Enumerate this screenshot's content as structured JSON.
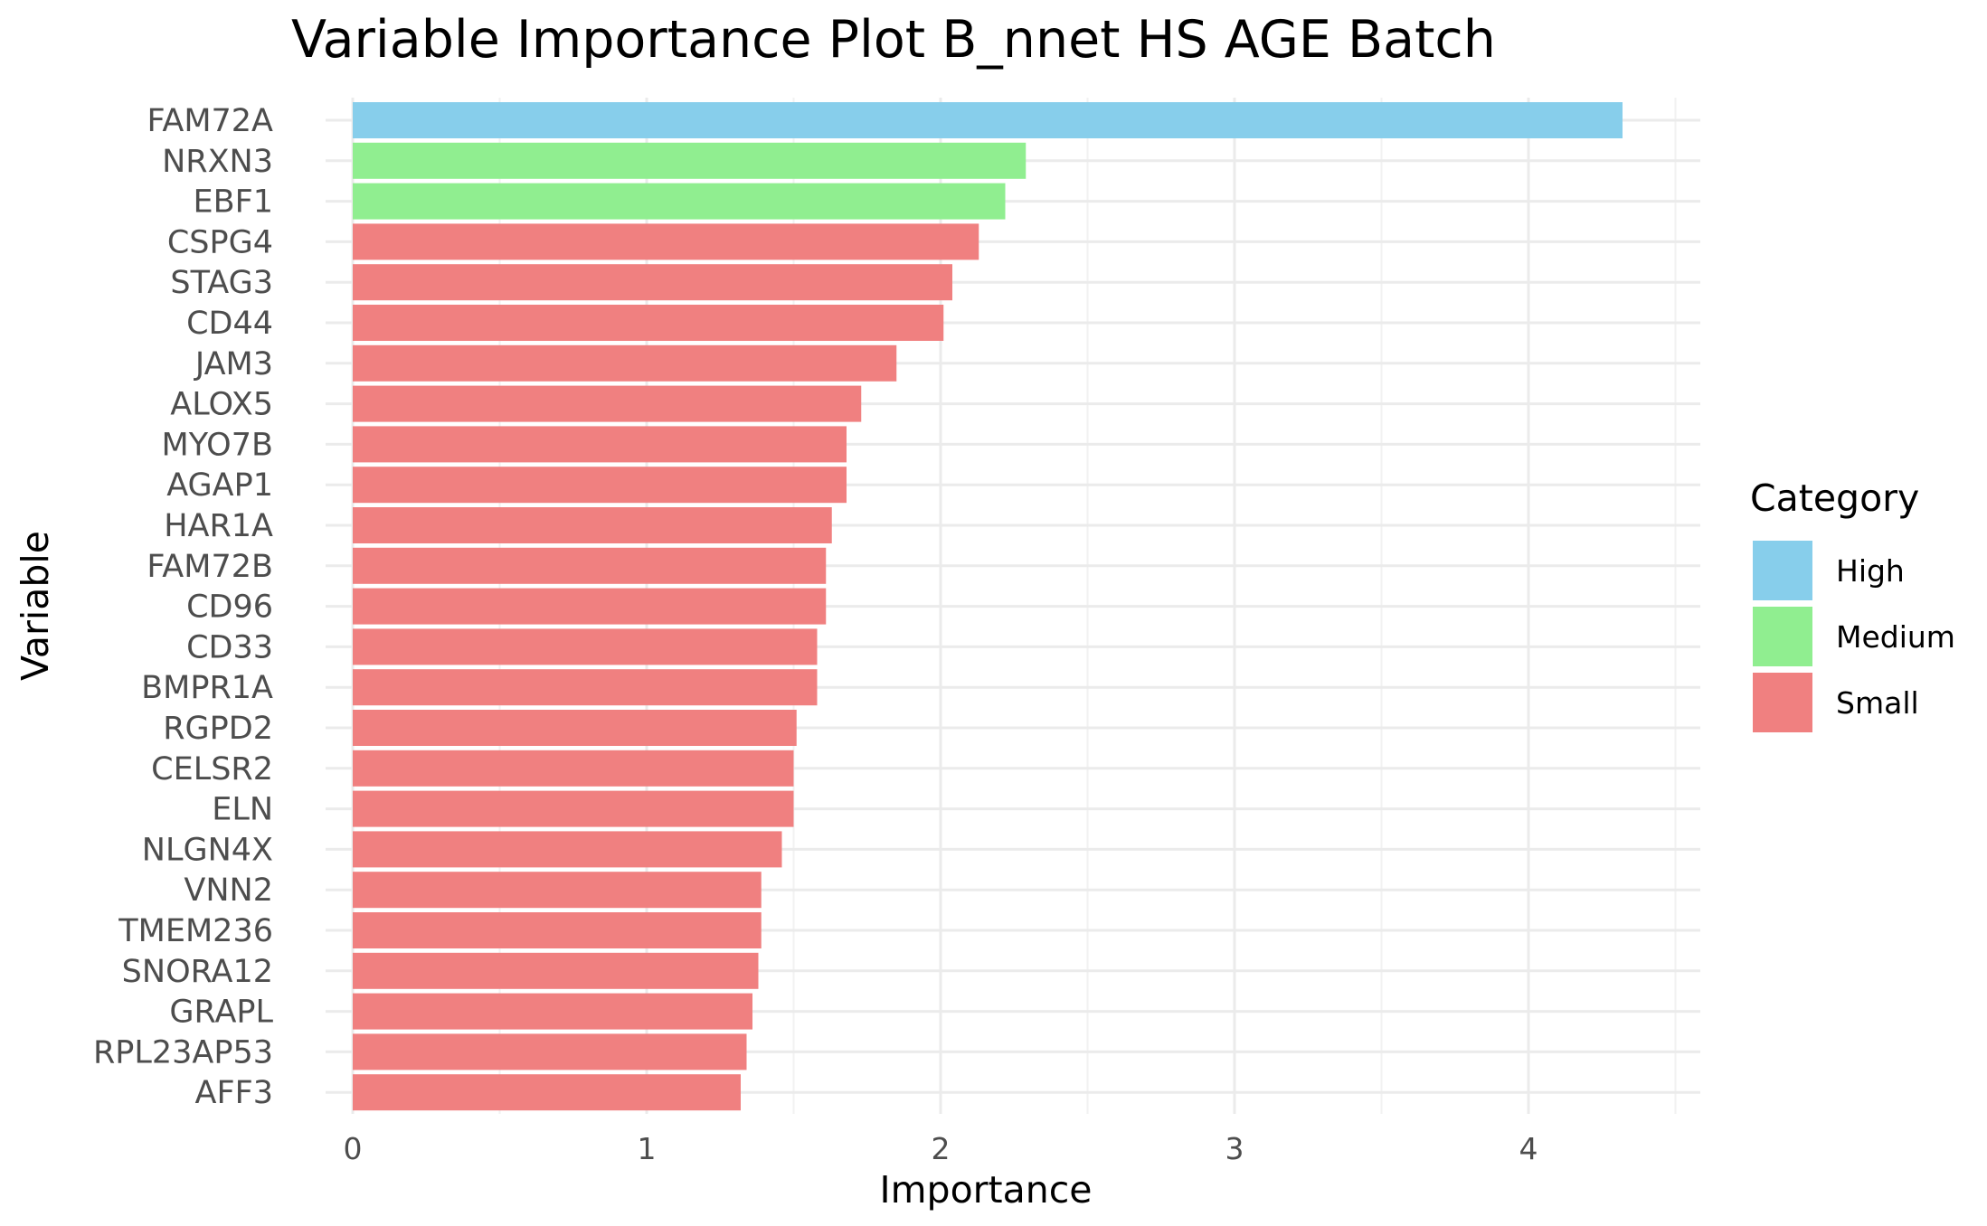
{
  "chart_data": {
    "type": "bar",
    "orientation": "horizontal",
    "title": "Variable Importance Plot B_nnet HS AGE Batch",
    "xlabel": "Importance",
    "ylabel": "Variable",
    "xlim": [
      0,
      4.5
    ],
    "x_ticks": [
      "0",
      "1",
      "2",
      "3",
      "4"
    ],
    "x_tick_values": [
      0,
      1,
      2,
      3,
      4
    ],
    "grid": true,
    "legend": {
      "title": "Category",
      "position": "right",
      "entries": [
        {
          "label": "High",
          "color": "#87ceeb"
        },
        {
          "label": "Medium",
          "color": "#90ee90"
        },
        {
          "label": "Small",
          "color": "#f08080"
        }
      ]
    },
    "categories": [
      "FAM72A",
      "NRXN3",
      "EBF1",
      "CSPG4",
      "STAG3",
      "CD44",
      "JAM3",
      "ALOX5",
      "MYO7B",
      "AGAP1",
      "HAR1A",
      "FAM72B",
      "CD96",
      "CD33",
      "BMPR1A",
      "RGPD2",
      "CELSR2",
      "ELN",
      "NLGN4X",
      "VNN2",
      "TMEM236",
      "SNORA12",
      "GRAPL",
      "RPL23AP53",
      "AFF3"
    ],
    "values": [
      4.32,
      2.29,
      2.22,
      2.13,
      2.04,
      2.01,
      1.85,
      1.73,
      1.68,
      1.68,
      1.63,
      1.61,
      1.61,
      1.58,
      1.58,
      1.51,
      1.5,
      1.5,
      1.46,
      1.39,
      1.39,
      1.38,
      1.36,
      1.34,
      1.32
    ],
    "bar_category": [
      "High",
      "Medium",
      "Medium",
      "Small",
      "Small",
      "Small",
      "Small",
      "Small",
      "Small",
      "Small",
      "Small",
      "Small",
      "Small",
      "Small",
      "Small",
      "Small",
      "Small",
      "Small",
      "Small",
      "Small",
      "Small",
      "Small",
      "Small",
      "Small",
      "Small"
    ]
  }
}
